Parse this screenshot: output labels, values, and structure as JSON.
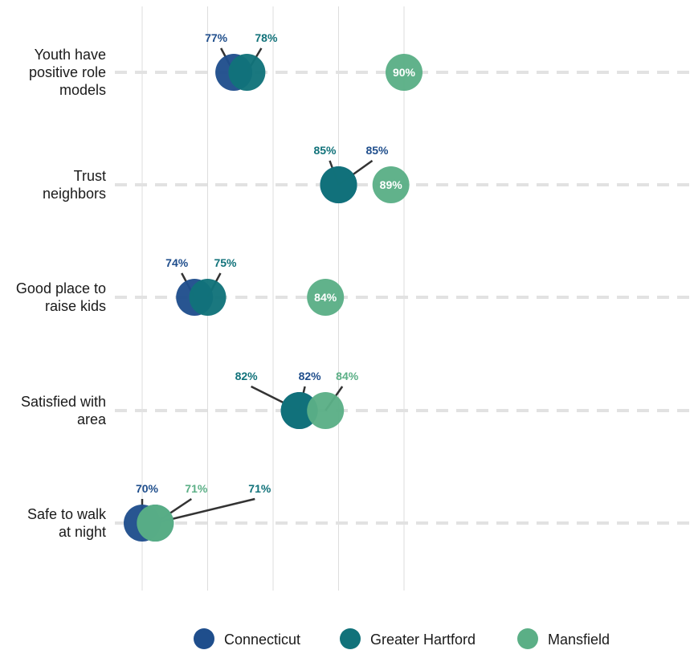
{
  "chart_data": {
    "type": "scatter",
    "title": "",
    "xlabel": "",
    "ylabel": "",
    "xlim": [
      70,
      90
    ],
    "grid": "vertical",
    "legend": "bottom",
    "categories": [
      "Youth have positive role models",
      "Trust neighbors",
      "Good place to raise kids",
      "Satisfied with area",
      "Safe to walk at night"
    ],
    "category_lines": [
      [
        "Youth have",
        "positive role",
        "models"
      ],
      [
        "Trust",
        "neighbors"
      ],
      [
        "Good place to",
        "raise kids"
      ],
      [
        "Satisfied with",
        "area"
      ],
      [
        "Safe to walk",
        "at night"
      ]
    ],
    "series": [
      {
        "name": "Connecticut",
        "color": "#1F4E8C",
        "values": [
          77,
          85,
          74,
          82,
          70
        ],
        "labels": [
          "77%",
          "85%",
          "74%",
          "82%",
          "70%"
        ]
      },
      {
        "name": "Greater Hartford",
        "color": "#11727A",
        "values": [
          78,
          85,
          75,
          82,
          71
        ],
        "labels": [
          "78%",
          "85%",
          "75%",
          "82%",
          "71%"
        ]
      },
      {
        "name": "Mansfield",
        "color": "#5BAF86",
        "values": [
          90,
          89,
          84,
          84,
          71
        ],
        "labels": [
          "90%",
          "89%",
          "84%",
          "84%",
          "71%"
        ]
      }
    ]
  }
}
